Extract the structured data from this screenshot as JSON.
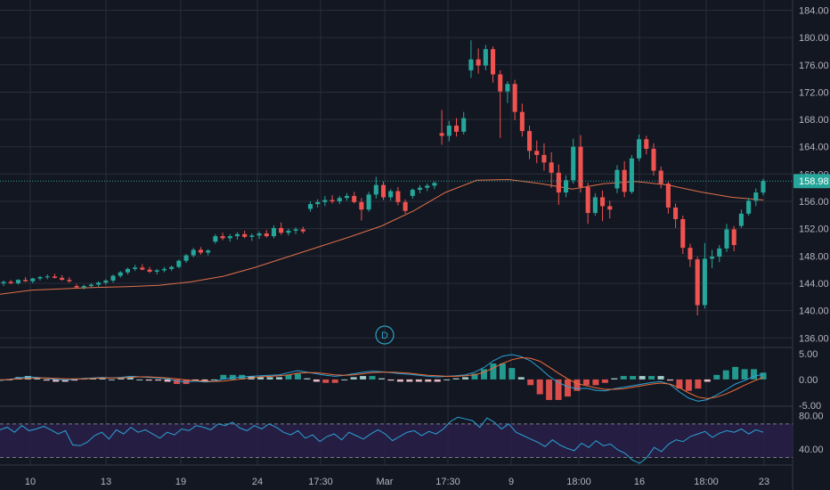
{
  "chart_data": {
    "type": "candlestick",
    "price_axis": {
      "ticks": [
        "184.00",
        "180.00",
        "176.00",
        "172.00",
        "168.00",
        "164.00",
        "160.00",
        "156.00",
        "152.00",
        "148.00",
        "144.00",
        "140.00",
        "136.00"
      ],
      "range": [
        134.6,
        185.5
      ]
    },
    "current_price": "158.98",
    "current_price_value": 158.98,
    "time_axis": {
      "labels": [
        "10",
        "13",
        "19",
        "24",
        "17:30",
        "Mar",
        "17:30",
        "9",
        "18:00",
        "16",
        "18:00",
        "23"
      ]
    },
    "marker_label": "D",
    "candles": [
      [
        144.0,
        144.4,
        143.6,
        144.2
      ],
      [
        144.2,
        144.5,
        143.9,
        144.0
      ],
      [
        144.0,
        144.6,
        143.8,
        144.5
      ],
      [
        144.5,
        144.9,
        144.2,
        144.3
      ],
      [
        144.3,
        144.8,
        144.0,
        144.7
      ],
      [
        144.7,
        145.1,
        144.4,
        144.9
      ],
      [
        144.9,
        145.3,
        144.6,
        145.0
      ],
      [
        145.0,
        145.4,
        144.7,
        144.8
      ],
      [
        144.8,
        145.2,
        144.4,
        144.5
      ],
      [
        144.5,
        144.9,
        144.1,
        144.3
      ],
      [
        143.6,
        143.9,
        143.2,
        143.4
      ],
      [
        143.4,
        143.8,
        143.1,
        143.6
      ],
      [
        143.6,
        144.0,
        143.3,
        143.8
      ],
      [
        143.8,
        144.3,
        143.5,
        144.1
      ],
      [
        144.1,
        144.6,
        143.8,
        144.4
      ],
      [
        144.4,
        145.3,
        144.1,
        145.1
      ],
      [
        145.1,
        145.8,
        144.8,
        145.6
      ],
      [
        145.6,
        146.3,
        145.3,
        146.1
      ],
      [
        146.1,
        146.7,
        145.8,
        146.3
      ],
      [
        146.3,
        146.8,
        145.9,
        146.0
      ],
      [
        146.0,
        146.4,
        145.5,
        145.7
      ],
      [
        145.7,
        146.1,
        145.3,
        145.9
      ],
      [
        145.9,
        146.4,
        145.6,
        146.1
      ],
      [
        146.1,
        146.6,
        145.8,
        146.4
      ],
      [
        146.4,
        147.5,
        146.2,
        147.3
      ],
      [
        147.3,
        148.3,
        147.0,
        148.1
      ],
      [
        148.1,
        149.2,
        147.8,
        148.9
      ],
      [
        148.9,
        149.3,
        148.2,
        148.5
      ],
      [
        148.5,
        149.0,
        148.1,
        148.8
      ],
      [
        150.1,
        151.2,
        149.8,
        150.9
      ],
      [
        150.9,
        151.4,
        150.3,
        150.6
      ],
      [
        150.6,
        151.2,
        150.1,
        150.9
      ],
      [
        150.9,
        151.5,
        150.4,
        151.2
      ],
      [
        151.2,
        151.7,
        150.6,
        150.8
      ],
      [
        150.8,
        151.3,
        150.2,
        151.0
      ],
      [
        151.0,
        151.6,
        150.5,
        151.3
      ],
      [
        151.3,
        151.8,
        150.7,
        150.9
      ],
      [
        150.9,
        152.5,
        150.6,
        152.1
      ],
      [
        152.1,
        152.9,
        151.1,
        151.4
      ],
      [
        151.4,
        152.0,
        151.0,
        151.7
      ],
      [
        151.7,
        152.2,
        151.2,
        151.9
      ],
      [
        151.9,
        152.3,
        151.3,
        151.6
      ],
      [
        154.9,
        156.0,
        154.5,
        155.6
      ],
      [
        155.6,
        156.3,
        155.1,
        155.9
      ],
      [
        155.9,
        156.8,
        155.3,
        156.2
      ],
      [
        156.2,
        156.9,
        155.7,
        156.0
      ],
      [
        156.0,
        156.8,
        155.6,
        156.5
      ],
      [
        156.5,
        157.2,
        156.1,
        156.8
      ],
      [
        156.8,
        157.4,
        155.7,
        155.9
      ],
      [
        155.9,
        156.5,
        153.2,
        154.8
      ],
      [
        154.8,
        157.4,
        154.5,
        157.0
      ],
      [
        157.0,
        159.6,
        156.4,
        158.4
      ],
      [
        158.4,
        158.9,
        156.2,
        156.6
      ],
      [
        156.6,
        157.8,
        156.1,
        157.5
      ],
      [
        157.5,
        158.1,
        155.4,
        155.9
      ],
      [
        155.9,
        156.3,
        154.2,
        154.6
      ],
      [
        156.8,
        157.9,
        156.4,
        157.7
      ],
      [
        157.7,
        158.4,
        157.2,
        158.0
      ],
      [
        158.0,
        158.6,
        157.5,
        158.3
      ],
      [
        158.3,
        158.9,
        157.8,
        158.7
      ],
      [
        166.0,
        169.4,
        164.3,
        165.6
      ],
      [
        165.6,
        167.8,
        164.8,
        167.1
      ],
      [
        167.1,
        168.2,
        165.5,
        166.2
      ],
      [
        166.2,
        169.1,
        165.8,
        168.2
      ],
      [
        175.2,
        179.6,
        174.1,
        176.8
      ],
      [
        176.8,
        178.4,
        174.7,
        175.9
      ],
      [
        175.9,
        178.9,
        175.2,
        178.3
      ],
      [
        178.3,
        178.7,
        173.4,
        174.6
      ],
      [
        174.6,
        175.2,
        165.3,
        172.1
      ],
      [
        172.1,
        173.6,
        170.4,
        173.2
      ],
      [
        173.2,
        173.8,
        167.9,
        169.1
      ],
      [
        169.1,
        170.3,
        165.5,
        166.3
      ],
      [
        166.3,
        167.1,
        162.2,
        163.4
      ],
      [
        163.4,
        164.9,
        161.6,
        162.8
      ],
      [
        162.8,
        164.5,
        160.5,
        161.7
      ],
      [
        161.7,
        163.2,
        158.0,
        160.2
      ],
      [
        160.2,
        161.4,
        155.5,
        157.3
      ],
      [
        157.3,
        159.8,
        156.6,
        159.1
      ],
      [
        159.1,
        165.2,
        158.6,
        164.0
      ],
      [
        164.0,
        165.7,
        157.3,
        158.1
      ],
      [
        158.1,
        158.7,
        152.7,
        154.3
      ],
      [
        154.3,
        157.2,
        153.9,
        156.6
      ],
      [
        156.6,
        157.6,
        153.1,
        155.3
      ],
      [
        155.3,
        156.1,
        153.5,
        154.8
      ],
      [
        157.9,
        161.3,
        157.2,
        160.6
      ],
      [
        160.6,
        161.9,
        156.6,
        157.4
      ],
      [
        157.4,
        162.8,
        157.1,
        162.3
      ],
      [
        162.3,
        165.8,
        161.9,
        165.1
      ],
      [
        165.1,
        165.6,
        162.9,
        163.7
      ],
      [
        163.7,
        164.5,
        159.8,
        160.5
      ],
      [
        160.5,
        161.1,
        157.9,
        158.6
      ],
      [
        158.6,
        158.9,
        154.2,
        155.1
      ],
      [
        155.1,
        155.7,
        152.1,
        153.4
      ],
      [
        153.4,
        153.9,
        148.3,
        149.2
      ],
      [
        149.2,
        149.8,
        146.4,
        147.5
      ],
      [
        147.5,
        147.9,
        139.3,
        140.8
      ],
      [
        140.8,
        149.9,
        140.3,
        147.6
      ],
      [
        147.6,
        148.9,
        146.2,
        147.9
      ],
      [
        147.9,
        149.6,
        147.1,
        149.1
      ],
      [
        149.1,
        152.7,
        148.6,
        151.9
      ],
      [
        151.9,
        152.4,
        148.7,
        149.6
      ],
      [
        152.4,
        154.8,
        152.1,
        154.2
      ],
      [
        154.2,
        156.5,
        153.9,
        156.1
      ],
      [
        156.1,
        157.9,
        155.3,
        157.3
      ],
      [
        157.3,
        159.3,
        156.9,
        158.98
      ]
    ],
    "ma_line": [
      142.4,
      143.0,
      143.2,
      143.4,
      143.5,
      143.7,
      144.2,
      145.0,
      146.3,
      147.8,
      149.3,
      150.8,
      152.4,
      154.6,
      157.3,
      159.1,
      159.2,
      158.6,
      157.8,
      158.6,
      158.9,
      158.4,
      157.4,
      156.6,
      156.2
    ],
    "macd": {
      "axis_ticks": [
        "5.00",
        "0.00",
        "-5.00"
      ],
      "range": [
        -5.0,
        6.0
      ],
      "macd_line": [
        -0.2,
        0.0,
        0.3,
        0.5,
        0.4,
        0.2,
        0.0,
        -0.1,
        0.0,
        0.2,
        0.3,
        0.4,
        0.3,
        0.4,
        0.6,
        0.5,
        0.4,
        0.3,
        0.1,
        -0.3,
        -0.5,
        -0.3,
        -0.5,
        -0.4,
        0.1,
        0.3,
        0.5,
        0.6,
        0.7,
        0.8,
        0.9,
        1.3,
        1.7,
        1.4,
        1.1,
        0.8,
        0.6,
        0.8,
        1.1,
        1.4,
        1.6,
        1.5,
        1.3,
        1.1,
        1.0,
        0.8,
        0.6,
        0.5,
        0.6,
        0.7,
        0.9,
        1.4,
        2.3,
        3.6,
        4.5,
        4.8,
        4.4,
        3.6,
        2.2,
        0.6,
        -0.6,
        -1.4,
        -1.8,
        -1.7,
        -2.1,
        -2.2,
        -1.8,
        -1.5,
        -1.2,
        -0.9,
        -0.6,
        -0.4,
        -1.0,
        -2.4,
        -3.6,
        -4.2,
        -3.9,
        -3.0,
        -2.0,
        -0.9,
        -0.2,
        0.6,
        1.0
      ],
      "signal_line": [
        -0.1,
        0.0,
        0.1,
        0.2,
        0.3,
        0.3,
        0.2,
        0.1,
        0.1,
        0.1,
        0.2,
        0.3,
        0.3,
        0.3,
        0.4,
        0.5,
        0.5,
        0.4,
        0.3,
        0.1,
        -0.1,
        -0.2,
        -0.3,
        -0.4,
        -0.3,
        -0.1,
        0.1,
        0.3,
        0.5,
        0.6,
        0.7,
        0.9,
        1.2,
        1.3,
        1.3,
        1.1,
        0.9,
        0.8,
        0.9,
        1.1,
        1.3,
        1.4,
        1.4,
        1.3,
        1.2,
        1.0,
        0.8,
        0.7,
        0.6,
        0.6,
        0.7,
        0.9,
        1.4,
        2.2,
        3.1,
        3.8,
        4.2,
        4.1,
        3.5,
        2.4,
        1.2,
        0.1,
        -0.8,
        -1.2,
        -1.6,
        -1.9,
        -1.9,
        -1.8,
        -1.5,
        -1.2,
        -0.9,
        -0.7,
        -0.9,
        -1.6,
        -2.6,
        -3.4,
        -3.7,
        -3.4,
        -2.8,
        -2.0,
        -1.1,
        -0.3,
        0.4
      ]
    },
    "rsi": {
      "axis_ticks": [
        "80.00",
        "40.00"
      ],
      "range": [
        22,
        90
      ],
      "upper_band": 70,
      "lower_band": 30,
      "line": [
        63,
        66,
        60,
        68,
        62,
        64,
        67,
        63,
        58,
        62,
        45,
        44,
        48,
        56,
        60,
        52,
        63,
        58,
        66,
        60,
        63,
        58,
        53,
        60,
        57,
        64,
        62,
        68,
        66,
        63,
        70,
        68,
        72,
        65,
        62,
        68,
        64,
        70,
        66,
        60,
        57,
        62,
        53,
        57,
        49,
        55,
        58,
        51,
        60,
        56,
        52,
        58,
        63,
        58,
        50,
        55,
        60,
        62,
        56,
        61,
        58,
        64,
        73,
        78,
        76,
        74,
        66,
        77,
        72,
        64,
        70,
        60,
        56,
        52,
        48,
        43,
        51,
        45,
        41,
        38,
        47,
        42,
        50,
        44,
        46,
        39,
        35,
        27,
        23,
        30,
        42,
        37,
        46,
        51,
        49,
        55,
        58,
        61,
        54,
        59,
        62,
        60,
        64,
        58,
        63,
        60
      ]
    }
  },
  "colors": {
    "background": "#131722",
    "grid": "#2a2e39",
    "up": "#26a69a",
    "down": "#ef5350",
    "ma_line": "#e0704a",
    "macd_line": "#2aa3d6",
    "signal_line": "#ef6c3a",
    "rsi_line": "#2aa3d6",
    "rsi_fill": "#2a1f48",
    "axis_text": "#b2b5be",
    "price_line": "#26a69a"
  }
}
